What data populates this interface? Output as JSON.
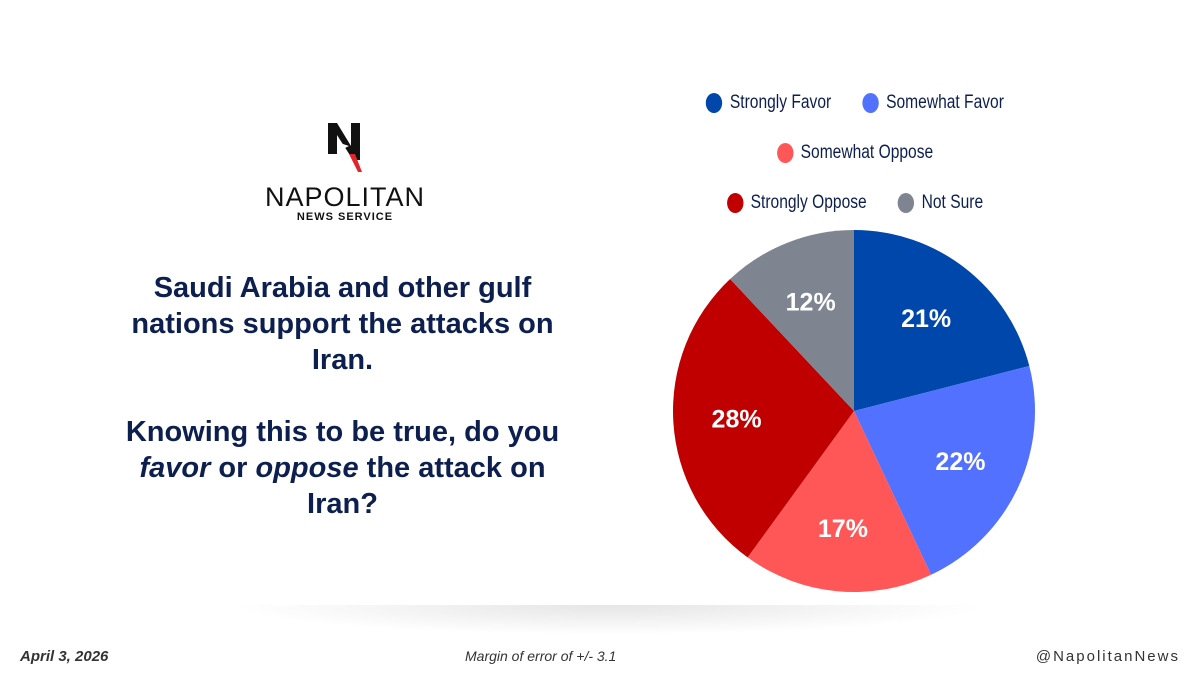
{
  "logo": {
    "name": "NAPOLITAN",
    "subtitle": "NEWS SERVICE"
  },
  "question": {
    "line1": "Saudi Arabia and other gulf nations support the attacks on Iran.",
    "line2_pre": "Knowing this to be true, do you ",
    "favor": "favor",
    "or": " or ",
    "oppose": "oppose",
    "line2_post": " the attack on Iran?"
  },
  "chart_data": {
    "type": "pie",
    "start": "12 o'clock, clockwise",
    "slices": [
      {
        "label": "Strongly Favor",
        "value": 21,
        "display": "21%",
        "color": "#0047ab"
      },
      {
        "label": "Somewhat Favor",
        "value": 22,
        "display": "22%",
        "color": "#5271ff"
      },
      {
        "label": "Somewhat Oppose",
        "value": 17,
        "display": "17%",
        "color": "#ff5757"
      },
      {
        "label": "Strongly Oppose",
        "value": 28,
        "display": "28%",
        "color": "#c00000"
      },
      {
        "label": "Not Sure",
        "value": 12,
        "display": "12%",
        "color": "#7f8590"
      }
    ],
    "legend_placement": "top"
  },
  "footer": {
    "date": "April 3, 2026",
    "margin": "Margin of error of +/- 3.1",
    "handle": "@NapolitanNews"
  }
}
